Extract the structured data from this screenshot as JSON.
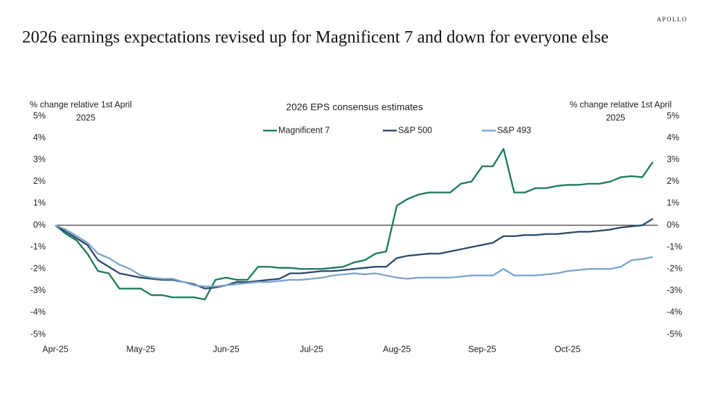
{
  "brand": "APOLLO",
  "chart_data": {
    "type": "line",
    "title": "2026 earnings expectations revised up for Magnificent 7 and down for everyone else",
    "subtitle": "2026 EPS consensus estimates",
    "y_label": [
      "% change relative 1st April",
      "2025"
    ],
    "y2_label": [
      "% change relative 1st April",
      "2025"
    ],
    "categories": [
      "Apr-25",
      null,
      null,
      null,
      null,
      null,
      null,
      null,
      "May-25",
      null,
      null,
      null,
      null,
      null,
      null,
      null,
      "Jun-25",
      null,
      null,
      null,
      null,
      null,
      null,
      null,
      "Jul-25",
      null,
      null,
      null,
      null,
      null,
      null,
      null,
      "Aug-25",
      null,
      null,
      null,
      null,
      null,
      null,
      null,
      "Sep-25",
      null,
      null,
      null,
      null,
      null,
      null,
      null,
      "Oct-25",
      null,
      null,
      null,
      null,
      null,
      null,
      null,
      null
    ],
    "series": [
      {
        "name": "Magnificent 7",
        "color": "#1b7a5a",
        "values": [
          0,
          -0.4,
          -0.7,
          -1.3,
          -2.1,
          -2.2,
          -2.9,
          -2.9,
          -2.9,
          -3.2,
          -3.2,
          -3.3,
          -3.3,
          -3.3,
          -3.4,
          -2.5,
          -2.4,
          -2.5,
          -2.5,
          -1.9,
          -1.9,
          -1.95,
          -1.95,
          -2.0,
          -2.0,
          -2.0,
          -1.95,
          -1.9,
          -1.7,
          -1.6,
          -1.3,
          -1.2,
          0.9,
          1.2,
          1.4,
          1.5,
          1.5,
          1.5,
          1.9,
          2.0,
          2.7,
          2.7,
          3.5,
          1.5,
          1.5,
          1.7,
          1.7,
          1.8,
          1.85,
          1.85,
          1.9,
          1.9,
          2.0,
          2.2,
          2.25,
          2.2,
          2.9
        ]
      },
      {
        "name": "S&P 500",
        "color": "#2f4a6d",
        "values": [
          0,
          -0.3,
          -0.6,
          -0.9,
          -1.6,
          -1.9,
          -2.2,
          -2.3,
          -2.4,
          -2.45,
          -2.5,
          -2.5,
          -2.6,
          -2.7,
          -2.9,
          -2.85,
          -2.75,
          -2.6,
          -2.6,
          -2.55,
          -2.5,
          -2.45,
          -2.2,
          -2.2,
          -2.15,
          -2.1,
          -2.1,
          -2.05,
          -2.0,
          -1.95,
          -1.9,
          -1.9,
          -1.5,
          -1.4,
          -1.35,
          -1.3,
          -1.3,
          -1.2,
          -1.1,
          -1.0,
          -0.9,
          -0.8,
          -0.5,
          -0.5,
          -0.45,
          -0.45,
          -0.4,
          -0.4,
          -0.35,
          -0.3,
          -0.3,
          -0.25,
          -0.2,
          -0.1,
          -0.05,
          0.0,
          0.3
        ]
      },
      {
        "name": "S&P 493",
        "color": "#7aa6cf",
        "values": [
          0,
          -0.2,
          -0.5,
          -0.8,
          -1.3,
          -1.5,
          -1.8,
          -2.0,
          -2.3,
          -2.4,
          -2.45,
          -2.45,
          -2.6,
          -2.75,
          -2.8,
          -2.8,
          -2.75,
          -2.7,
          -2.65,
          -2.6,
          -2.6,
          -2.55,
          -2.5,
          -2.5,
          -2.45,
          -2.4,
          -2.3,
          -2.25,
          -2.2,
          -2.25,
          -2.2,
          -2.3,
          -2.4,
          -2.45,
          -2.4,
          -2.4,
          -2.4,
          -2.4,
          -2.35,
          -2.3,
          -2.3,
          -2.3,
          -2.0,
          -2.3,
          -2.3,
          -2.3,
          -2.25,
          -2.2,
          -2.1,
          -2.05,
          -2.0,
          -2.0,
          -2.0,
          -1.9,
          -1.6,
          -1.55,
          -1.45
        ]
      }
    ],
    "ylim": [
      -5,
      5
    ],
    "yticks": [
      {
        "value": -5,
        "label": "-5%"
      },
      {
        "value": -4,
        "label": "-4%"
      },
      {
        "value": -3,
        "label": "-3%"
      },
      {
        "value": -2,
        "label": "-2%"
      },
      {
        "value": -1,
        "label": "-1%"
      },
      {
        "value": 0,
        "label": "0%"
      },
      {
        "value": 1,
        "label": "1%"
      },
      {
        "value": 2,
        "label": "2%"
      },
      {
        "value": 3,
        "label": "3%"
      },
      {
        "value": 4,
        "label": "4%"
      },
      {
        "value": 5,
        "label": "5%"
      }
    ],
    "y2lim": [
      -5,
      5
    ],
    "y2ticks": [
      {
        "value": -5,
        "label": "-5%"
      },
      {
        "value": -4,
        "label": "-4%"
      },
      {
        "value": -3,
        "label": "-3%"
      },
      {
        "value": -2,
        "label": "-2%"
      },
      {
        "value": -1,
        "label": "-1%"
      },
      {
        "value": 0,
        "label": "0%"
      },
      {
        "value": 1,
        "label": "1%"
      },
      {
        "value": 2,
        "label": "2%"
      },
      {
        "value": 3,
        "label": "3%"
      },
      {
        "value": 4,
        "label": "4%"
      },
      {
        "value": 5,
        "label": "5%"
      }
    ],
    "legend": "top"
  }
}
